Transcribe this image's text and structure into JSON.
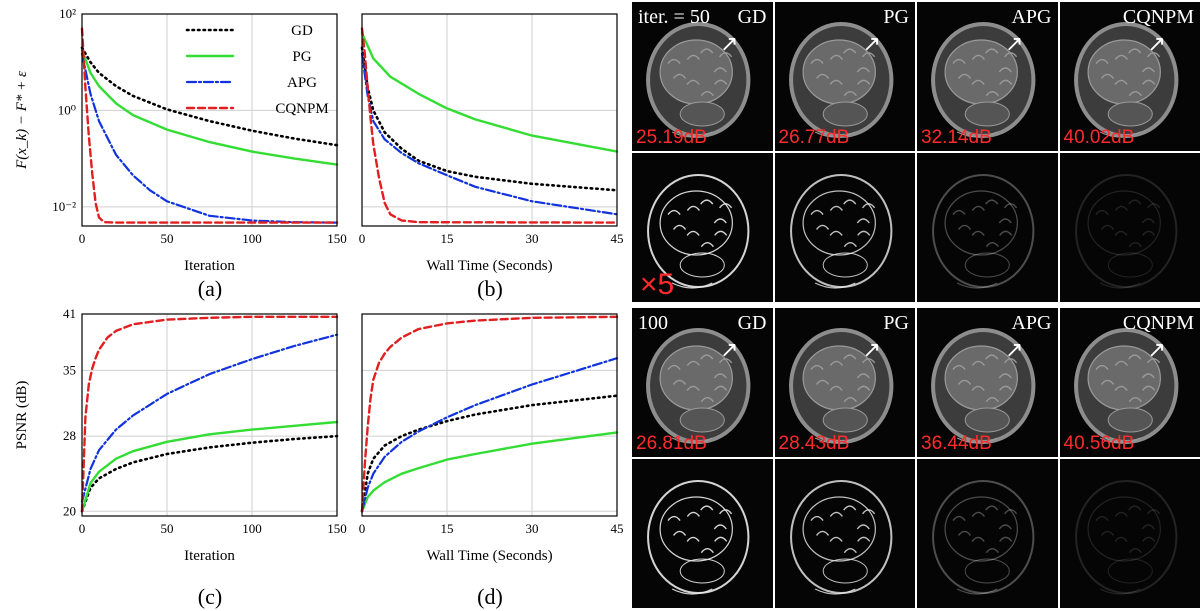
{
  "chart_data": [
    {
      "type": "line",
      "panel": "(a)",
      "xlabel": "Iteration",
      "ylabel": "F(x_k) − F* + ε",
      "yscale": "log",
      "xlim": [
        0,
        150
      ],
      "ylim": [
        0.004,
        100
      ],
      "xticks": [
        "0",
        "50",
        "100",
        "150"
      ],
      "yticks": [
        {
          "v": 100,
          "label": "10²"
        },
        {
          "v": 1,
          "label": "10⁰"
        },
        {
          "v": 0.01,
          "label": "10⁻²"
        }
      ],
      "grid": true,
      "legend": "top-right",
      "series": [
        {
          "name": "GD",
          "color": "#000000",
          "dash": "dot",
          "x": [
            0,
            5,
            10,
            20,
            30,
            50,
            75,
            100,
            125,
            150
          ],
          "y": [
            20,
            10,
            6,
            3.2,
            2.0,
            1.05,
            0.6,
            0.38,
            0.26,
            0.19
          ]
        },
        {
          "name": "PG",
          "color": "#33dd33",
          "dash": "solid",
          "x": [
            0,
            5,
            10,
            20,
            30,
            50,
            75,
            100,
            125,
            150
          ],
          "y": [
            18,
            6,
            3.2,
            1.4,
            0.8,
            0.4,
            0.22,
            0.14,
            0.1,
            0.075
          ]
        },
        {
          "name": "APG",
          "color": "#1133dd",
          "dash": "dashdot",
          "x": [
            0,
            5,
            10,
            20,
            30,
            40,
            50,
            75,
            100,
            125,
            150
          ],
          "y": [
            15,
            2.2,
            0.6,
            0.12,
            0.045,
            0.022,
            0.013,
            0.0065,
            0.0052,
            0.0048,
            0.0047
          ]
        },
        {
          "name": "CQNPM",
          "color": "#e02020",
          "dash": "dash",
          "x": [
            0,
            2,
            4,
            6,
            8,
            10,
            13,
            20,
            50,
            100,
            150
          ],
          "y": [
            50,
            3,
            0.3,
            0.05,
            0.012,
            0.006,
            0.0048,
            0.0047,
            0.0047,
            0.0047,
            0.0047
          ]
        }
      ]
    },
    {
      "type": "line",
      "panel": "(b)",
      "xlabel": "Wall Time (Seconds)",
      "yscale": "log",
      "xlim": [
        0,
        45
      ],
      "ylim": [
        0.004,
        100
      ],
      "xticks": [
        "0",
        "15",
        "30",
        "45"
      ],
      "grid": true,
      "series": [
        {
          "name": "GD",
          "color": "#000000",
          "dash": "dot",
          "x": [
            0,
            1,
            2,
            4,
            7,
            10,
            15,
            20,
            30,
            45
          ],
          "y": [
            20,
            3,
            1.0,
            0.35,
            0.16,
            0.09,
            0.055,
            0.042,
            0.03,
            0.022
          ]
        },
        {
          "name": "PG",
          "color": "#33dd33",
          "dash": "solid",
          "x": [
            0,
            2,
            5,
            10,
            15,
            20,
            30,
            45
          ],
          "y": [
            40,
            12,
            5,
            2.2,
            1.1,
            0.65,
            0.3,
            0.14
          ]
        },
        {
          "name": "APG",
          "color": "#1133dd",
          "dash": "dashdot",
          "x": [
            0,
            1,
            2,
            4,
            7,
            10,
            15,
            20,
            30,
            45
          ],
          "y": [
            15,
            2,
            0.6,
            0.25,
            0.13,
            0.08,
            0.045,
            0.026,
            0.013,
            0.007
          ]
        },
        {
          "name": "CQNPM",
          "color": "#e02020",
          "dash": "dash",
          "x": [
            0,
            0.5,
            1,
            1.5,
            2,
            3,
            4,
            5,
            7,
            10,
            45
          ],
          "y": [
            50,
            15,
            3,
            0.7,
            0.2,
            0.04,
            0.012,
            0.007,
            0.0052,
            0.0048,
            0.0047
          ]
        }
      ]
    },
    {
      "type": "line",
      "panel": "(c)",
      "xlabel": "Iteration",
      "ylabel": "PSNR (dB)",
      "xlim": [
        0,
        150
      ],
      "ylim": [
        19.5,
        41
      ],
      "xticks": [
        "0",
        "50",
        "100",
        "150"
      ],
      "yticks": [
        {
          "v": 20,
          "label": "20"
        },
        {
          "v": 28,
          "label": "28"
        },
        {
          "v": 35,
          "label": "35"
        },
        {
          "v": 41,
          "label": "41"
        }
      ],
      "grid": true,
      "series": [
        {
          "name": "GD",
          "color": "#000000",
          "dash": "dot",
          "x": [
            0,
            5,
            10,
            20,
            30,
            50,
            75,
            100,
            125,
            150
          ],
          "y": [
            20,
            22.5,
            23.5,
            24.5,
            25.2,
            26.1,
            26.8,
            27.3,
            27.7,
            28.0
          ]
        },
        {
          "name": "PG",
          "color": "#33dd33",
          "dash": "solid",
          "x": [
            0,
            5,
            10,
            20,
            30,
            50,
            75,
            100,
            125,
            150
          ],
          "y": [
            20,
            23.0,
            24.2,
            25.6,
            26.4,
            27.4,
            28.2,
            28.7,
            29.1,
            29.5
          ]
        },
        {
          "name": "APG",
          "color": "#1133dd",
          "dash": "dashdot",
          "x": [
            0,
            5,
            10,
            20,
            30,
            50,
            75,
            100,
            125,
            150
          ],
          "y": [
            21,
            24.5,
            26.5,
            28.7,
            30.2,
            32.5,
            34.6,
            36.2,
            37.6,
            38.8
          ]
        },
        {
          "name": "CQNPM",
          "color": "#e02020",
          "dash": "dash",
          "x": [
            0,
            2,
            4,
            6,
            8,
            10,
            15,
            20,
            30,
            50,
            75,
            100,
            150
          ],
          "y": [
            20,
            30,
            33.5,
            35.2,
            36.3,
            37.2,
            38.5,
            39.2,
            39.9,
            40.4,
            40.6,
            40.7,
            40.7
          ]
        }
      ]
    },
    {
      "type": "line",
      "panel": "(d)",
      "xlabel": "Wall Time (Seconds)",
      "xlim": [
        0,
        45
      ],
      "ylim": [
        19.5,
        41
      ],
      "xticks": [
        "0",
        "15",
        "30",
        "45"
      ],
      "grid": true,
      "series": [
        {
          "name": "GD",
          "color": "#000000",
          "dash": "dot",
          "x": [
            0,
            1,
            2,
            4,
            7,
            10,
            15,
            20,
            30,
            45
          ],
          "y": [
            20,
            24,
            25.6,
            27.0,
            28.0,
            28.7,
            29.6,
            30.3,
            31.3,
            32.3
          ]
        },
        {
          "name": "PG",
          "color": "#33dd33",
          "dash": "solid",
          "x": [
            0,
            1,
            2,
            4,
            7,
            10,
            15,
            20,
            30,
            45
          ],
          "y": [
            20,
            21.5,
            22.2,
            23.1,
            24.0,
            24.6,
            25.5,
            26.1,
            27.2,
            28.4
          ]
        },
        {
          "name": "APG",
          "color": "#1133dd",
          "dash": "dashdot",
          "x": [
            0,
            1,
            2,
            4,
            7,
            10,
            15,
            20,
            30,
            45
          ],
          "y": [
            20,
            22.5,
            24.0,
            25.8,
            27.4,
            28.5,
            30.0,
            31.3,
            33.5,
            36.3
          ]
        },
        {
          "name": "CQNPM",
          "color": "#e02020",
          "dash": "dash",
          "x": [
            0,
            0.5,
            1,
            1.5,
            2,
            3,
            4,
            5,
            7,
            10,
            15,
            20,
            30,
            45
          ],
          "y": [
            20,
            25,
            29,
            32,
            34,
            35.8,
            36.8,
            37.5,
            38.5,
            39.4,
            40.0,
            40.3,
            40.6,
            40.7
          ]
        }
      ]
    }
  ],
  "panel_labels": [
    "(a)",
    "(b)",
    "(c)",
    "(d)"
  ],
  "mri": {
    "rows": [
      {
        "iter_label": "iter. = 50",
        "methods": [
          "GD",
          "PG",
          "APG",
          "CQNPM"
        ],
        "psnr": [
          "25.19dB",
          "26.77dB",
          "32.14dB",
          "40.02dB"
        ]
      },
      {
        "iter_label": "100",
        "methods": [
          "GD",
          "PG",
          "APG",
          "CQNPM"
        ],
        "psnr": [
          "26.81dB",
          "28.43dB",
          "36.44dB",
          "40.56dB"
        ]
      }
    ],
    "error_scale_label": "×5",
    "arrow_glyph": "↗",
    "error_brightness": [
      1.0,
      0.9,
      0.35,
      0.15
    ]
  }
}
